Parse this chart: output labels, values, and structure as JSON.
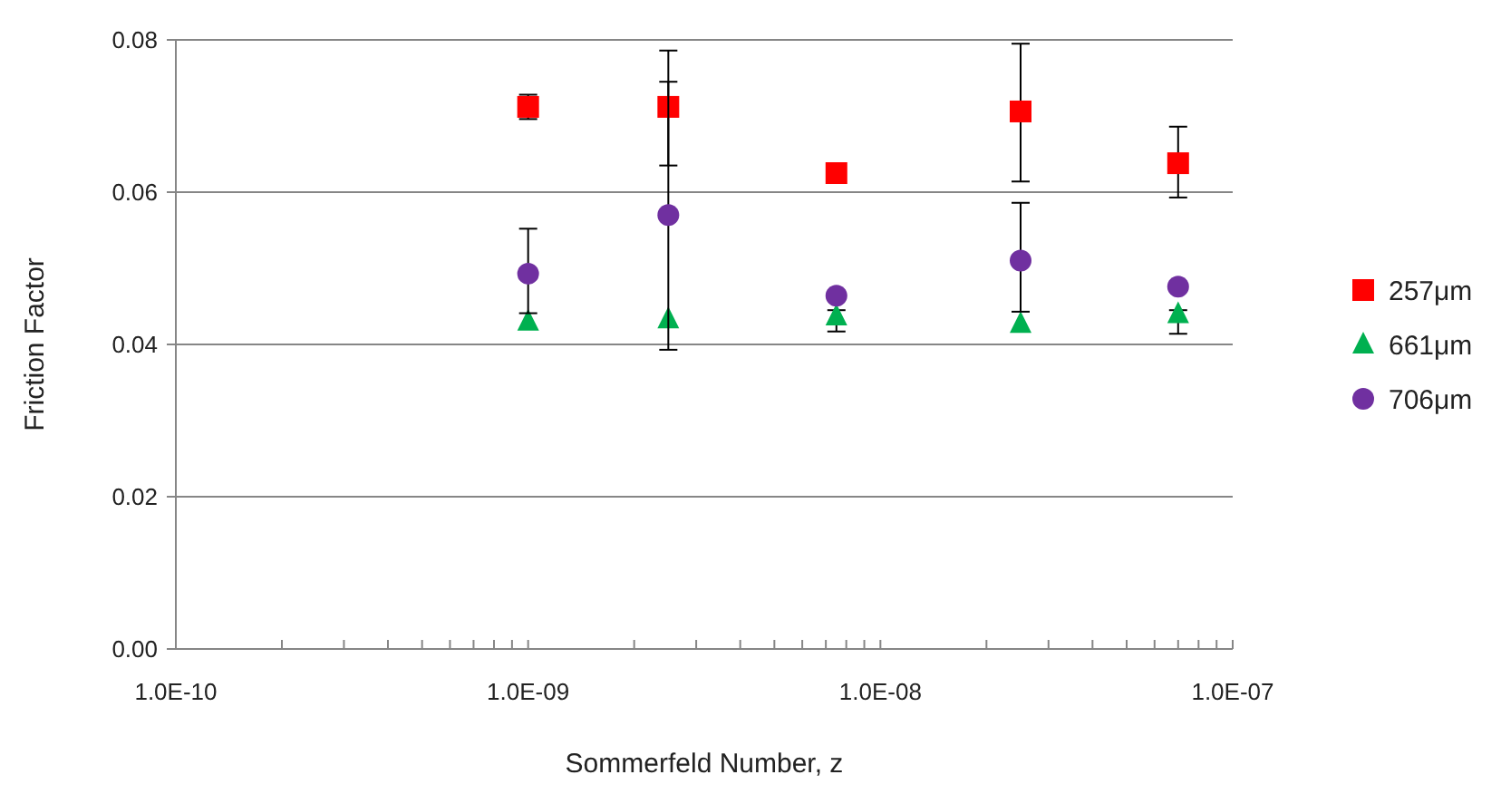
{
  "chart_data": {
    "type": "scatter",
    "xlabel": "Sommerfeld Number, z",
    "ylabel": "Friction Factor",
    "log": "x",
    "grid": "y",
    "legend": "right",
    "xlim": [
      1e-10,
      1e-07
    ],
    "xticks": [
      {
        "value": 1e-10,
        "label": "1.0E-10"
      },
      {
        "value": 2e-10,
        "label": null
      },
      {
        "value": 3e-10,
        "label": null
      },
      {
        "value": 4e-10,
        "label": null
      },
      {
        "value": 5e-10,
        "label": null
      },
      {
        "value": 6e-10,
        "label": null
      },
      {
        "value": 7e-10,
        "label": null
      },
      {
        "value": 8e-10,
        "label": null
      },
      {
        "value": 9e-10,
        "label": null
      },
      {
        "value": 1e-09,
        "label": "1.0E-09"
      },
      {
        "value": 2e-09,
        "label": null
      },
      {
        "value": 3e-09,
        "label": null
      },
      {
        "value": 4e-09,
        "label": null
      },
      {
        "value": 5e-09,
        "label": null
      },
      {
        "value": 6e-09,
        "label": null
      },
      {
        "value": 7e-09,
        "label": null
      },
      {
        "value": 8e-09,
        "label": null
      },
      {
        "value": 9e-09,
        "label": null
      },
      {
        "value": 1e-08,
        "label": "1.0E-08"
      },
      {
        "value": 2e-08,
        "label": null
      },
      {
        "value": 3e-08,
        "label": null
      },
      {
        "value": 4e-08,
        "label": null
      },
      {
        "value": 5e-08,
        "label": null
      },
      {
        "value": 6e-08,
        "label": null
      },
      {
        "value": 7e-08,
        "label": null
      },
      {
        "value": 8e-08,
        "label": null
      },
      {
        "value": 9e-08,
        "label": null
      },
      {
        "value": 1e-07,
        "label": "1.0E-07"
      }
    ],
    "ylim": [
      0,
      0.08
    ],
    "yticks": [
      {
        "value": 0,
        "label": "0.00"
      },
      {
        "value": 0.02,
        "label": "0.02"
      },
      {
        "value": 0.04,
        "label": "0.04"
      },
      {
        "value": 0.06,
        "label": "0.06"
      },
      {
        "value": 0.08,
        "label": "0.08"
      }
    ],
    "x": [
      1e-09,
      2.5e-09,
      7.5e-09,
      2.5e-08,
      7e-08
    ],
    "series": [
      {
        "name": "257μm",
        "color": "#ff0000",
        "marker": "square",
        "values": [
          0.0712,
          0.0712,
          0.0625,
          0.0706,
          0.0638
        ],
        "errors": [
          [
            0.0696,
            0.0728
          ],
          [
            0.0635,
            0.0786
          ],
          null,
          [
            0.0614,
            0.0795
          ],
          [
            0.0593,
            0.0686
          ]
        ]
      },
      {
        "name": "661μm",
        "color": "#00b050",
        "marker": "triangle",
        "values": [
          0.043,
          0.0433,
          0.0437,
          0.0427,
          0.044
        ],
        "errors": [
          null,
          null,
          [
            0.0417,
            0.0445
          ],
          null,
          [
            0.0414,
            0.0445
          ]
        ]
      },
      {
        "name": "706μm",
        "color": "#7030a0",
        "marker": "circle",
        "values": [
          0.0493,
          0.057,
          0.0464,
          0.051,
          0.0476
        ],
        "errors": [
          [
            0.0441,
            0.0552
          ],
          [
            0.0393,
            0.0745
          ],
          null,
          [
            0.0443,
            0.0586
          ],
          null
        ]
      }
    ]
  }
}
